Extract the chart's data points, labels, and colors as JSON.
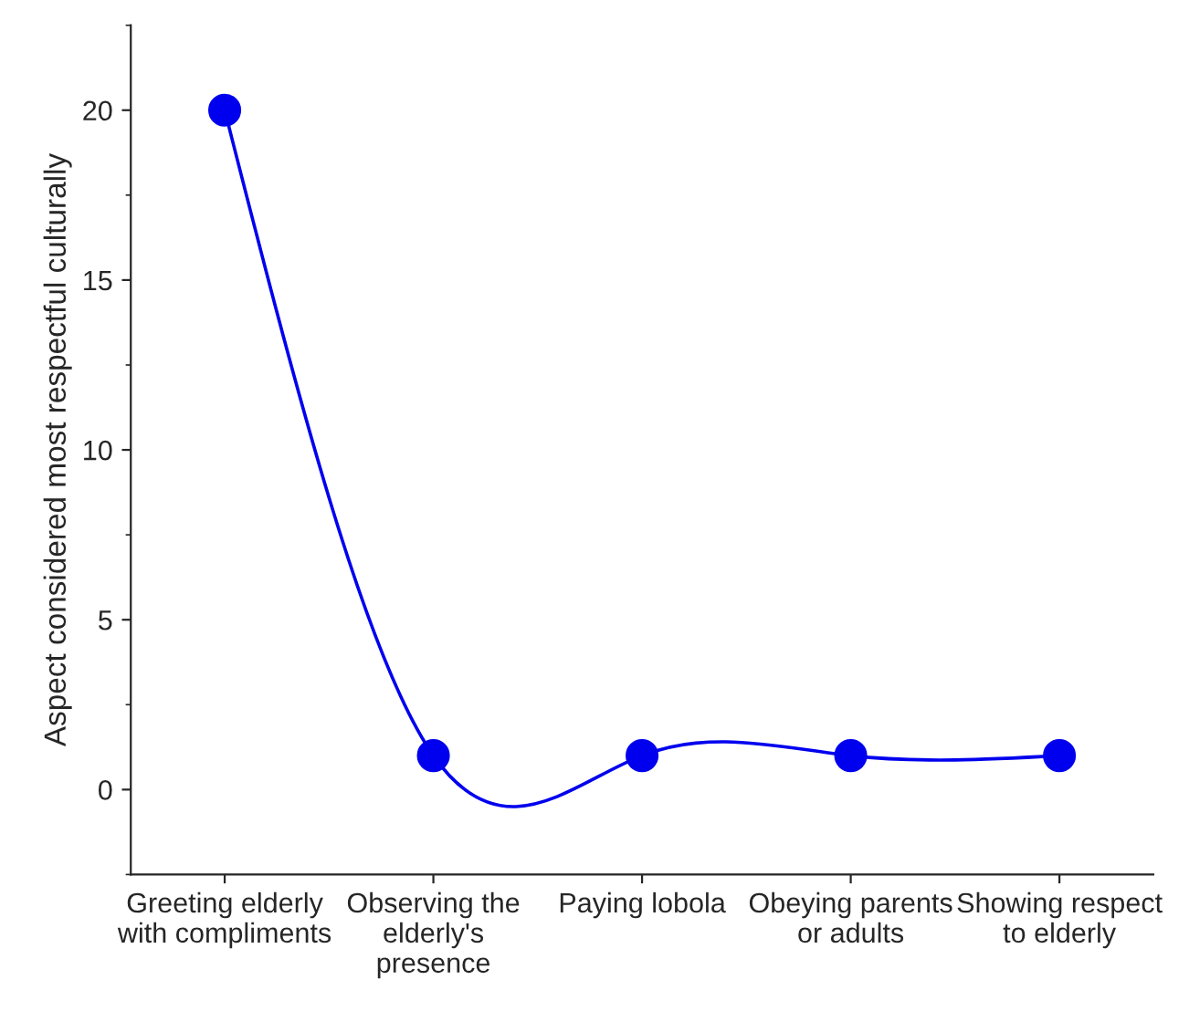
{
  "chart_data": {
    "type": "line",
    "ylabel": "Aspect considered most respectful culturally",
    "categories": [
      "Greeting elderly with compliments",
      "Observing the elderly's presence",
      "Paying lobola",
      "Obeying parents or adults",
      "Showing respect to elderly"
    ],
    "series": [
      {
        "color": "#0000ee",
        "values": [
          20,
          1,
          1,
          1,
          1
        ]
      }
    ],
    "ylim": [
      -2.5,
      22.5
    ],
    "yticks": [
      0,
      5,
      10,
      15,
      20
    ],
    "grid": false,
    "marker": "circle",
    "line_style": "solid"
  }
}
